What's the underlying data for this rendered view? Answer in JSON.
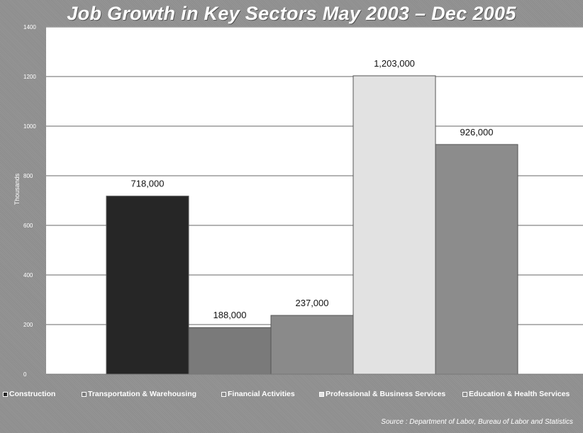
{
  "chart_data": {
    "type": "bar",
    "title": "Job Growth in Key Sectors  May 2003 – Dec 2005",
    "ylabel": "Thousands",
    "xlabel": "",
    "ylim": [
      0,
      1400
    ],
    "yticks": [
      0,
      200,
      400,
      600,
      800,
      1000,
      1200,
      1400
    ],
    "grid": true,
    "legend_position": "bottom",
    "categories": [
      "Construction",
      "Transportation & Warehousing",
      "Financial Activities",
      "Professional & Business Services",
      "Education & Health Services"
    ],
    "values": [
      718,
      188,
      237,
      1203,
      926
    ],
    "data_labels": [
      "718,000",
      "188,000",
      "237,000",
      "1,203,000",
      "926,000"
    ],
    "colors": [
      "#262626",
      "#7a7a7a",
      "#8a8a8a",
      "#e2e2e2",
      "#8c8c8c"
    ]
  },
  "source": "Source : Department of Labor, Bureau of Labor and Statistics"
}
